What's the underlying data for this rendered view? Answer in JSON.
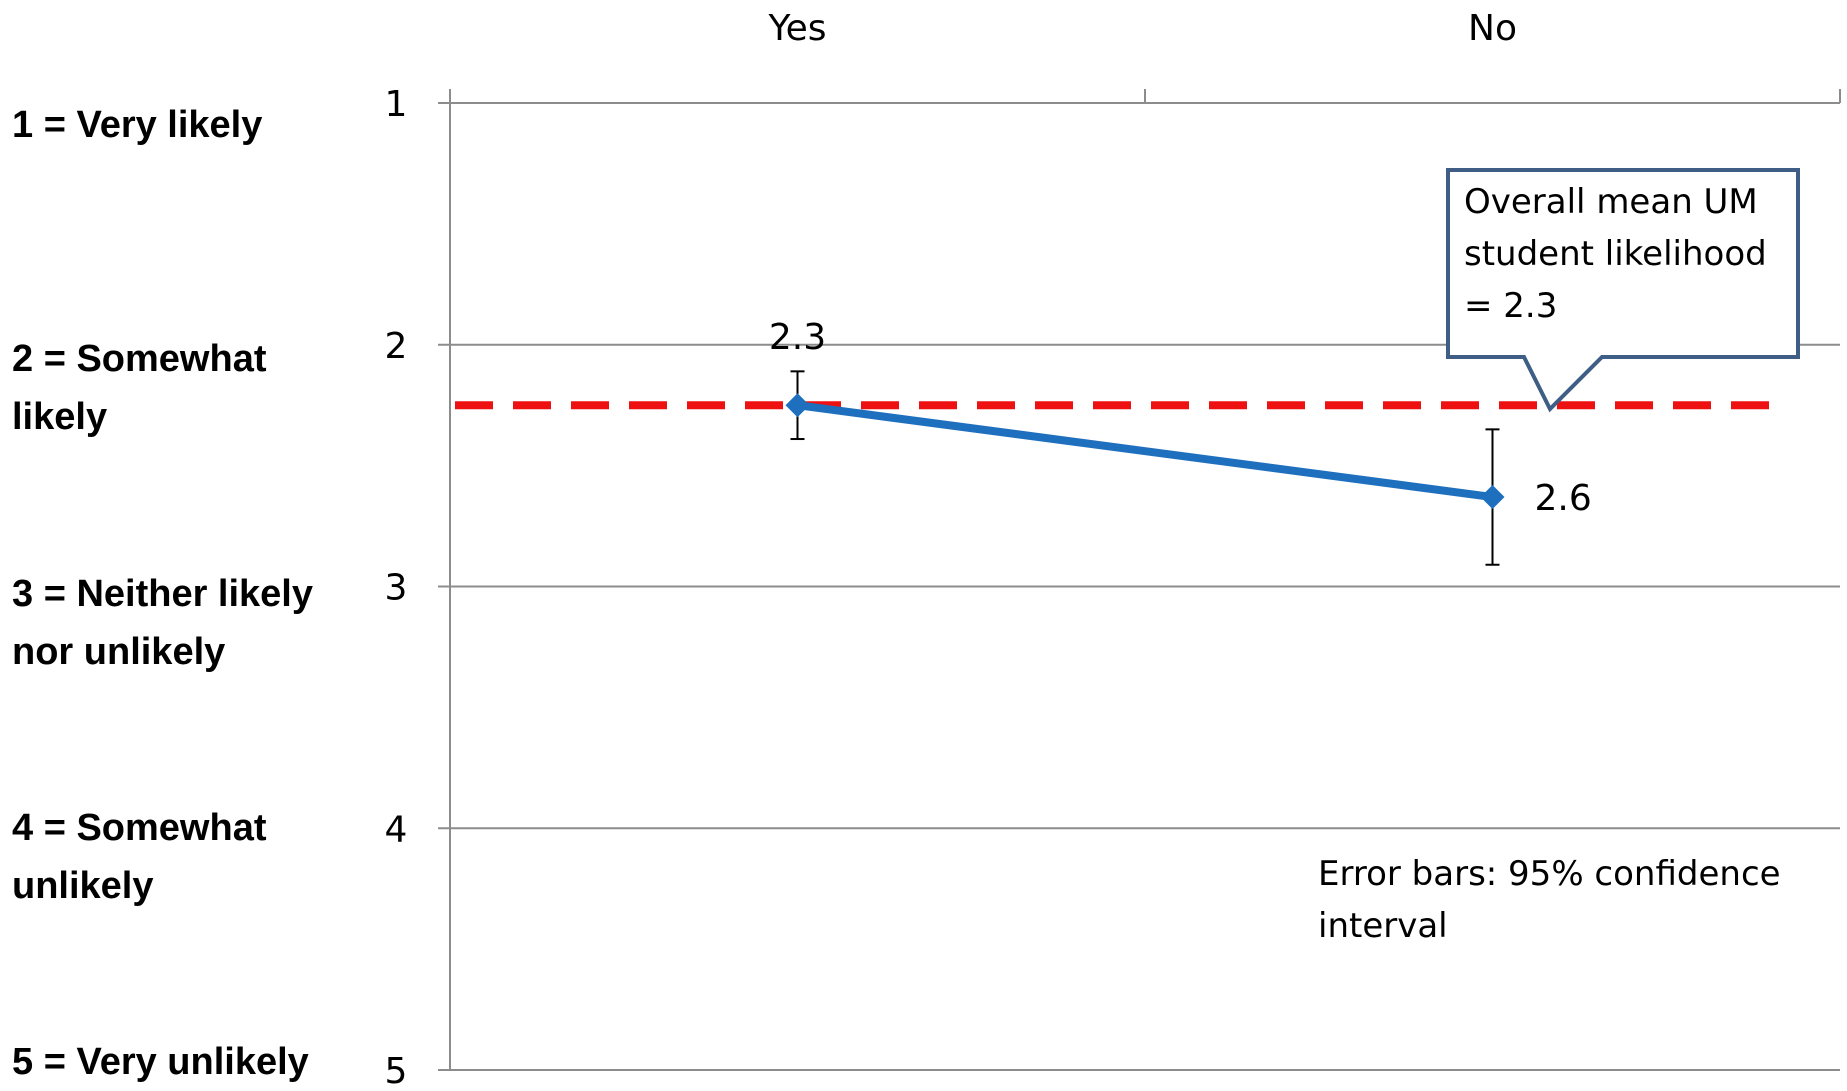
{
  "chart_data": {
    "type": "line",
    "categories": [
      "Yes",
      "No"
    ],
    "series": [
      {
        "values": [
          2.25,
          2.63
        ],
        "labels": [
          "2.3",
          "2.6"
        ],
        "ci_low": [
          2.11,
          2.35
        ],
        "ci_high": [
          2.39,
          2.91
        ]
      }
    ],
    "reference_line": {
      "value": 2.25,
      "style": "dashed"
    },
    "y_ticks": [
      "1",
      "2",
      "3",
      "4",
      "5"
    ],
    "ylim": [
      1,
      5
    ],
    "y_inverted": true,
    "grid": true,
    "legend": "none",
    "x_axis_position": "top",
    "colors": {
      "series": "#1f6fbf",
      "reference": "#ee1111",
      "grid": "#8c8c8c",
      "callout_border": "#3e5e86"
    }
  },
  "scale_labels": [
    "1 = Very likely",
    "2 = Somewhat likely",
    "3 = Neither likely nor unlikely",
    "4 = Somewhat unlikely",
    "5 = Very unlikely"
  ],
  "callout_text": "Overall mean UM student likelihood = 2.3",
  "note_text": "Error bars: 95% confidence interval"
}
